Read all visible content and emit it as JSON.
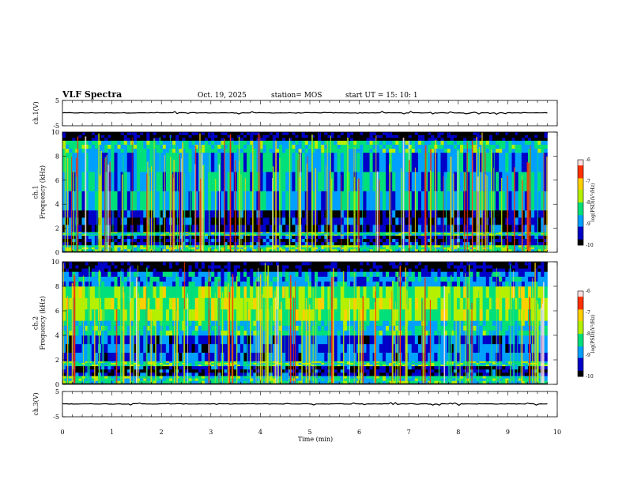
{
  "header": {
    "title": "VLF Spectra",
    "date": "Oct. 19, 2025",
    "station": "station= MOS",
    "start": "start  UT =   15: 10: 1"
  },
  "chart_data": [
    {
      "type": "line",
      "name": "ch1-voltage",
      "ylabel": "ch.1(V)",
      "ylim": [
        -5,
        5
      ],
      "yticks": [
        "5",
        "-5"
      ],
      "x": [
        0,
        9.8
      ],
      "values": [
        0.1,
        0.1
      ]
    },
    {
      "type": "heatmap",
      "name": "ch1-spectrogram",
      "ylabel": "ch.1\nFrequency (kHz)",
      "ylim": [
        0,
        10
      ],
      "yticks": [
        "0",
        "2",
        "4",
        "6",
        "8",
        "10"
      ],
      "xlim": [
        0,
        9.8
      ],
      "colorbar": {
        "label": "log(PSD)(V²/Hz)",
        "ticks": [
          "-6",
          "-7",
          "-8",
          "-9",
          "-10"
        ],
        "range": [
          -10,
          -6
        ]
      },
      "bands_khz": [
        {
          "from": 0.1,
          "to": 0.6,
          "level": -8.2
        },
        {
          "from": 0.6,
          "to": 1.4,
          "level": -9.6
        },
        {
          "from": 1.4,
          "to": 1.7,
          "level": -8.4
        },
        {
          "from": 1.7,
          "to": 3.5,
          "level": -9.6
        },
        {
          "from": 3.5,
          "to": 8.3,
          "level": -8.8
        },
        {
          "from": 8.3,
          "to": 9.3,
          "level": -8.4
        },
        {
          "from": 9.3,
          "to": 10.0,
          "level": -9.9
        }
      ]
    },
    {
      "type": "heatmap",
      "name": "ch2-spectrogram",
      "ylabel": "ch.2\nFrequency (kHz)",
      "ylim": [
        0,
        10
      ],
      "yticks": [
        "0",
        "2",
        "4",
        "6",
        "8",
        "10"
      ],
      "xlim": [
        0,
        9.8
      ],
      "colorbar": {
        "label": "log(PSD)(V²/Hz)",
        "ticks": [
          "-6",
          "-7",
          "-8",
          "-9",
          "-10"
        ],
        "range": [
          -10,
          -6
        ]
      },
      "bands_khz": [
        {
          "from": 0.1,
          "to": 0.7,
          "level": -8.4
        },
        {
          "from": 0.7,
          "to": 1.5,
          "level": -9.6
        },
        {
          "from": 1.5,
          "to": 1.9,
          "level": -8.3
        },
        {
          "from": 1.9,
          "to": 4.0,
          "level": -9.2
        },
        {
          "from": 4.0,
          "to": 5.2,
          "level": -8.5
        },
        {
          "from": 5.2,
          "to": 8.0,
          "level": -7.9
        },
        {
          "from": 8.0,
          "to": 9.2,
          "level": -8.9
        },
        {
          "from": 9.2,
          "to": 10.0,
          "level": -9.9
        }
      ]
    },
    {
      "type": "line",
      "name": "ch3-voltage",
      "ylabel": "ch.3(V)",
      "ylim": [
        -5,
        5
      ],
      "yticks": [
        "5",
        "-5"
      ],
      "x": [
        0,
        9.8
      ],
      "values": [
        0.1,
        0.1
      ]
    }
  ],
  "xaxis": {
    "label": "Time  (min)",
    "ticks": [
      "0",
      "1",
      "2",
      "3",
      "4",
      "5",
      "6",
      "7",
      "8",
      "9",
      "10"
    ],
    "xlim": [
      0,
      10
    ]
  },
  "colors": {
    "bg": "#ffffff",
    "cmap": [
      "#000000",
      "#0000c8",
      "#00a0ff",
      "#00e07a",
      "#b4f000",
      "#ffd000",
      "#ff3000",
      "#ffe0e0"
    ]
  }
}
